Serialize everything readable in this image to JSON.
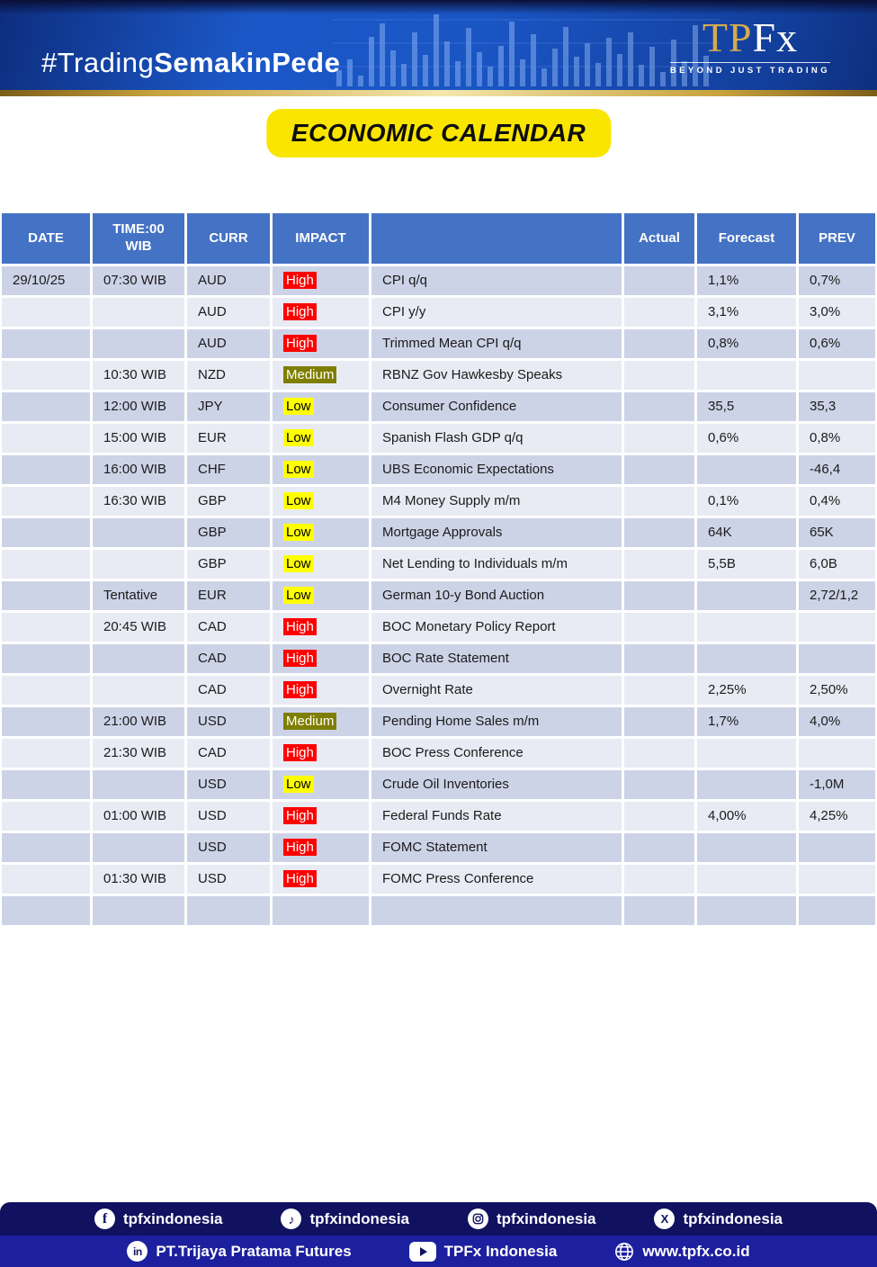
{
  "header": {
    "hashtag_regular": "#Trading",
    "hashtag_bold": "SemakinPede",
    "logo_tp": "TP",
    "logo_fx": "Fx",
    "logo_tagline": "BEYOND JUST TRADING"
  },
  "title": "ECONOMIC CALENDAR",
  "table": {
    "headers": [
      "DATE",
      "TIME:00 WIB",
      "CURR",
      "IMPACT",
      "",
      "Actual",
      "Forecast",
      "PREV"
    ],
    "rows": [
      {
        "date": "29/10/25",
        "time": "07:30 WIB",
        "curr": "AUD",
        "impact": "High",
        "event": "CPI q/q",
        "actual": "",
        "forecast": "1,1%",
        "prev": "0,7%"
      },
      {
        "date": "",
        "time": "",
        "curr": "AUD",
        "impact": "High",
        "event": "CPI y/y",
        "actual": "",
        "forecast": "3,1%",
        "prev": "3,0%"
      },
      {
        "date": "",
        "time": "",
        "curr": "AUD",
        "impact": "High",
        "event": "Trimmed Mean CPI q/q",
        "actual": "",
        "forecast": "0,8%",
        "prev": "0,6%"
      },
      {
        "date": "",
        "time": "10:30 WIB",
        "curr": "NZD",
        "impact": "Medium",
        "event": "RBNZ Gov Hawkesby Speaks",
        "actual": "",
        "forecast": "",
        "prev": ""
      },
      {
        "date": "",
        "time": "12:00 WIB",
        "curr": "JPY",
        "impact": "Low",
        "event": "Consumer Confidence",
        "actual": "",
        "forecast": "35,5",
        "prev": "35,3"
      },
      {
        "date": "",
        "time": "15:00 WIB",
        "curr": "EUR",
        "impact": "Low",
        "event": "Spanish Flash GDP q/q",
        "actual": "",
        "forecast": "0,6%",
        "prev": "0,8%"
      },
      {
        "date": "",
        "time": "16:00 WIB",
        "curr": "CHF",
        "impact": "Low",
        "event": "UBS Economic Expectations",
        "actual": "",
        "forecast": "",
        "prev": "-46,4"
      },
      {
        "date": "",
        "time": "16:30 WIB",
        "curr": "GBP",
        "impact": "Low",
        "event": "M4 Money Supply m/m",
        "actual": "",
        "forecast": "0,1%",
        "prev": "0,4%"
      },
      {
        "date": "",
        "time": "",
        "curr": "GBP",
        "impact": "Low",
        "event": "Mortgage Approvals",
        "actual": "",
        "forecast": "64K",
        "prev": "65K"
      },
      {
        "date": "",
        "time": "",
        "curr": "GBP",
        "impact": "Low",
        "event": "Net Lending to Individuals m/m",
        "actual": "",
        "forecast": "5,5B",
        "prev": "6,0B"
      },
      {
        "date": "",
        "time": "Tentative",
        "curr": "EUR",
        "impact": "Low",
        "event": "German 10-y Bond Auction",
        "actual": "",
        "forecast": "",
        "prev": "2,72/1,2"
      },
      {
        "date": "",
        "time": "20:45 WIB",
        "curr": "CAD",
        "impact": "High",
        "event": "BOC Monetary Policy Report",
        "actual": "",
        "forecast": "",
        "prev": ""
      },
      {
        "date": "",
        "time": "",
        "curr": "CAD",
        "impact": "High",
        "event": "BOC Rate Statement",
        "actual": "",
        "forecast": "",
        "prev": ""
      },
      {
        "date": "",
        "time": "",
        "curr": "CAD",
        "impact": "High",
        "event": "Overnight Rate",
        "actual": "",
        "forecast": "2,25%",
        "prev": "2,50%"
      },
      {
        "date": "",
        "time": "21:00 WIB",
        "curr": "USD",
        "impact": "Medium",
        "event": "Pending Home Sales m/m",
        "actual": "",
        "forecast": "1,7%",
        "prev": "4,0%"
      },
      {
        "date": "",
        "time": "21:30 WIB",
        "curr": "CAD",
        "impact": "High",
        "event": "BOC Press Conference",
        "actual": "",
        "forecast": "",
        "prev": ""
      },
      {
        "date": "",
        "time": "",
        "curr": "USD",
        "impact": "Low",
        "event": "Crude Oil Inventories",
        "actual": "",
        "forecast": "",
        "prev": "-1,0M"
      },
      {
        "date": "",
        "time": "01:00 WIB",
        "curr": "USD",
        "impact": "High",
        "event": "Federal Funds Rate",
        "actual": "",
        "forecast": "4,00%",
        "prev": "4,25%"
      },
      {
        "date": "",
        "time": "",
        "curr": "USD",
        "impact": "High",
        "event": "FOMC Statement",
        "actual": "",
        "forecast": "",
        "prev": ""
      },
      {
        "date": "",
        "time": "01:30 WIB",
        "curr": "USD",
        "impact": "High",
        "event": "FOMC Press Conference",
        "actual": "",
        "forecast": "",
        "prev": ""
      },
      {
        "date": "",
        "time": "",
        "curr": "",
        "impact": "",
        "event": "",
        "actual": "",
        "forecast": "",
        "prev": ""
      }
    ]
  },
  "footer": {
    "social": [
      {
        "icon": "facebook-icon",
        "label": "tpfxindonesia"
      },
      {
        "icon": "tiktok-icon",
        "label": "tpfxindonesia"
      },
      {
        "icon": "instagram-icon",
        "label": "tpfxindonesia"
      },
      {
        "icon": "x-icon",
        "label": "tpfxindonesia"
      }
    ],
    "company": [
      {
        "icon": "linkedin-icon",
        "label": "PT.Trijaya Pratama Futures"
      },
      {
        "icon": "youtube-icon",
        "label": "TPFx Indonesia"
      },
      {
        "icon": "globe-icon",
        "label": "www.tpfx.co.id"
      }
    ]
  },
  "colors": {
    "header_blue": "#4472c4",
    "stripe_dark": "#cdd3e7",
    "stripe_light": "#e9ebf4",
    "impact_high": "#ff0000",
    "impact_medium": "#7e7e00",
    "impact_low": "#ffff00",
    "title_yellow": "#fae500",
    "banner_blue": "#1b57c6",
    "gold": "#c8a23c",
    "footer_navy": "#101260",
    "footer_indigo": "#1c1f9e"
  }
}
